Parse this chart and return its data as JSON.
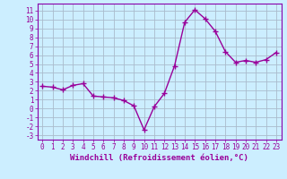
{
  "x": [
    0,
    1,
    2,
    3,
    4,
    5,
    6,
    7,
    8,
    9,
    10,
    11,
    12,
    13,
    14,
    15,
    16,
    17,
    18,
    19,
    20,
    21,
    22,
    23
  ],
  "y": [
    2.5,
    2.4,
    2.1,
    2.6,
    2.8,
    1.4,
    1.3,
    1.2,
    0.9,
    0.3,
    -2.4,
    0.2,
    1.7,
    4.8,
    9.7,
    11.1,
    10.1,
    8.7,
    6.4,
    5.2,
    5.4,
    5.2,
    5.5,
    6.3
  ],
  "line_color": "#990099",
  "marker": "+",
  "marker_size": 4,
  "marker_lw": 1.0,
  "bg_color": "#cceeff",
  "grid_color": "#aabbcc",
  "xlabel": "Windchill (Refroidissement éolien,°C)",
  "ylim": [
    -3.5,
    11.8
  ],
  "xlim": [
    -0.5,
    23.5
  ],
  "yticks": [
    -3,
    -2,
    -1,
    0,
    1,
    2,
    3,
    4,
    5,
    6,
    7,
    8,
    9,
    10,
    11
  ],
  "xticks": [
    0,
    1,
    2,
    3,
    4,
    5,
    6,
    7,
    8,
    9,
    10,
    11,
    12,
    13,
    14,
    15,
    16,
    17,
    18,
    19,
    20,
    21,
    22,
    23
  ],
  "tick_color": "#990099",
  "spine_color": "#8800aa",
  "label_fontsize": 6.5,
  "tick_fontsize": 5.5,
  "linewidth": 1.0
}
